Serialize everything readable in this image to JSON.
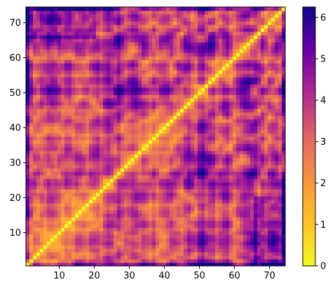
{
  "chart_data": {
    "type": "heatmap",
    "title": "",
    "xlabel": "",
    "ylabel": "",
    "grid": false,
    "cell_count": 74,
    "x_range": [
      1,
      74
    ],
    "y_range": [
      1,
      74
    ],
    "x_ticks": [
      10,
      20,
      30,
      40,
      50,
      60,
      70
    ],
    "y_ticks": [
      10,
      20,
      30,
      40,
      50,
      60,
      70
    ],
    "diagonal_value": 0,
    "value_range": [
      0,
      6.25
    ],
    "colormap": "plasma (reversed)",
    "colorbar": {
      "placement": "right",
      "ticks": [
        0,
        1,
        2,
        3,
        4,
        5,
        6
      ],
      "stops": [
        "#f0f921",
        "#fdc328",
        "#f89441",
        "#e16462",
        "#b12a90",
        "#6a00a8",
        "#0d0887"
      ]
    }
  }
}
